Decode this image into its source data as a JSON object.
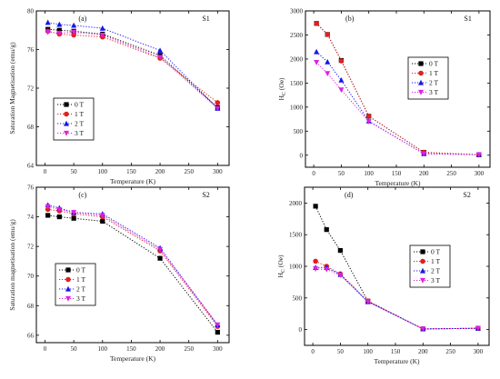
{
  "legend_labels": [
    "0 T",
    "1 T",
    "2 T",
    "3 T"
  ],
  "colors": [
    "#000000",
    "#e0201f",
    "#1515e8",
    "#e020e0"
  ],
  "chart_data": [
    {
      "type": "line",
      "panel": "(a)",
      "sample": "S1",
      "xlabel": "Temperature (K)",
      "ylabel": "Saturation Magnetisation (emu/g)",
      "xlim": [
        -15,
        320
      ],
      "ylim": [
        64,
        80
      ],
      "xticks": [
        0,
        50,
        100,
        150,
        200,
        250,
        300
      ],
      "yticks": [
        64,
        68,
        72,
        76,
        80
      ],
      "legend_position": "bottom-left",
      "x": [
        5,
        25,
        50,
        100,
        200,
        300
      ],
      "series": [
        {
          "name": "0 T",
          "marker": "square",
          "values": [
            78.1,
            78.0,
            77.9,
            77.6,
            75.4,
            70.0
          ]
        },
        {
          "name": "1 T",
          "marker": "circle",
          "values": [
            77.9,
            77.6,
            77.5,
            77.3,
            75.1,
            70.5
          ]
        },
        {
          "name": "2 T",
          "marker": "triangle-up",
          "values": [
            78.8,
            78.6,
            78.5,
            78.2,
            75.9,
            69.9
          ]
        },
        {
          "name": "3 T",
          "marker": "triangle-down",
          "values": [
            77.8,
            77.7,
            77.8,
            77.5,
            75.2,
            69.9
          ]
        }
      ]
    },
    {
      "type": "line",
      "panel": "(b)",
      "sample": "S1",
      "xlabel": "Temperature (K)",
      "ylabel": "H_C (Oe)",
      "xlim": [
        -15,
        320
      ],
      "ylim": [
        -250,
        3000
      ],
      "xticks": [
        0,
        50,
        100,
        150,
        200,
        250,
        300
      ],
      "yticks": [
        0,
        500,
        1000,
        1500,
        2000,
        2500,
        3000
      ],
      "legend_position": "right",
      "x": [
        5,
        25,
        50,
        100,
        200,
        300
      ],
      "series": [
        {
          "name": "0 T",
          "marker": "square",
          "values": [
            2740,
            2510,
            1970,
            810,
            60,
            10
          ]
        },
        {
          "name": "1 T",
          "marker": "circle",
          "values": [
            2740,
            2510,
            1960,
            810,
            60,
            10
          ]
        },
        {
          "name": "2 T",
          "marker": "triangle-up",
          "values": [
            2150,
            1940,
            1560,
            710,
            30,
            10
          ]
        },
        {
          "name": "3 T",
          "marker": "triangle-down",
          "values": [
            1930,
            1700,
            1360,
            700,
            30,
            10
          ]
        }
      ]
    },
    {
      "type": "line",
      "panel": "(c)",
      "sample": "S2",
      "xlabel": "Temperature (K)",
      "ylabel": "Saturation magnetisation (emu/g)",
      "xlim": [
        -15,
        320
      ],
      "ylim": [
        65.5,
        76
      ],
      "xticks": [
        0,
        50,
        100,
        150,
        200,
        250,
        300
      ],
      "yticks": [
        66,
        68,
        70,
        72,
        74,
        76
      ],
      "legend_position": "bottom-left",
      "x": [
        5,
        25,
        50,
        100,
        200,
        300
      ],
      "series": [
        {
          "name": "0 T",
          "marker": "square",
          "values": [
            74.1,
            74.0,
            73.9,
            73.7,
            71.2,
            66.2
          ]
        },
        {
          "name": "1 T",
          "marker": "circle",
          "values": [
            74.5,
            74.4,
            74.2,
            74.0,
            71.7,
            66.6
          ]
        },
        {
          "name": "2 T",
          "marker": "triangle-up",
          "values": [
            74.8,
            74.6,
            74.3,
            74.2,
            71.9,
            66.7
          ]
        },
        {
          "name": "3 T",
          "marker": "triangle-down",
          "values": [
            74.7,
            74.5,
            74.3,
            74.1,
            71.8,
            66.7
          ]
        }
      ]
    },
    {
      "type": "line",
      "panel": "(d)",
      "sample": "S2",
      "xlabel": "Temperature (K)",
      "ylabel": "H_C (Oe)",
      "xlim": [
        -15,
        320
      ],
      "ylim": [
        -250,
        2250
      ],
      "xticks": [
        0,
        50,
        100,
        150,
        200,
        250,
        300
      ],
      "yticks": [
        0,
        500,
        1000,
        1500,
        2000
      ],
      "legend_position": "right",
      "x": [
        5,
        25,
        50,
        100,
        200,
        300
      ],
      "series": [
        {
          "name": "0 T",
          "marker": "square",
          "values": [
            1950,
            1580,
            1250,
            450,
            10,
            20
          ]
        },
        {
          "name": "1 T",
          "marker": "circle",
          "values": [
            1080,
            1000,
            880,
            450,
            10,
            20
          ]
        },
        {
          "name": "2 T",
          "marker": "triangle-up",
          "values": [
            980,
            980,
            870,
            440,
            10,
            20
          ]
        },
        {
          "name": "3 T",
          "marker": "triangle-down",
          "values": [
            960,
            950,
            860,
            440,
            10,
            20
          ]
        }
      ]
    }
  ]
}
